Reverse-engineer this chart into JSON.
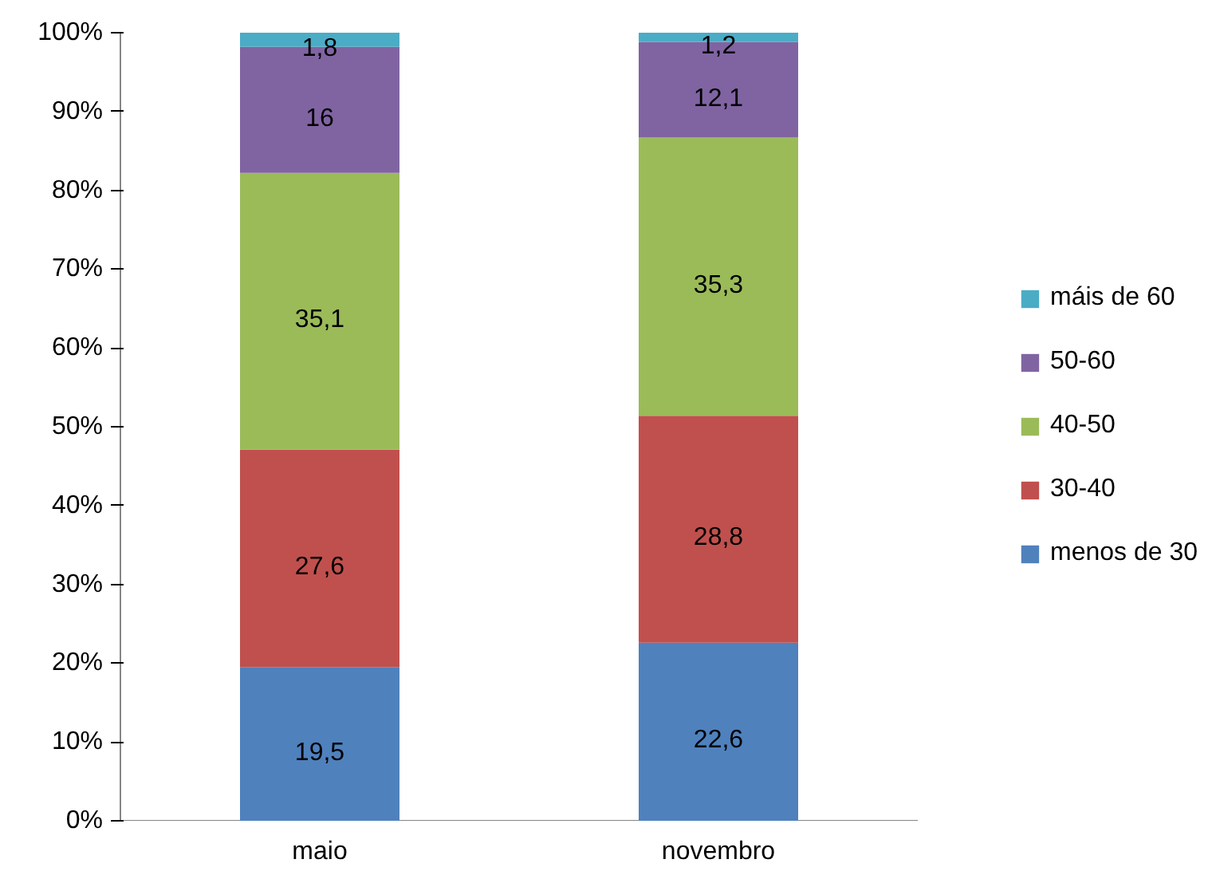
{
  "chart_data": {
    "type": "bar",
    "stacked": true,
    "categories": [
      "maio",
      "novembro"
    ],
    "series": [
      {
        "name": "menos de 30",
        "color": "#4f81bd",
        "values": [
          19.5,
          22.6
        ],
        "value_labels": [
          "19,5",
          "22,6"
        ]
      },
      {
        "name": "30-40",
        "color": "#c0504d",
        "values": [
          27.6,
          28.8
        ],
        "value_labels": [
          "27,6",
          "28,8"
        ]
      },
      {
        "name": "40-50",
        "color": "#9bbb59",
        "values": [
          35.1,
          35.3
        ],
        "value_labels": [
          "35,1",
          "35,3"
        ]
      },
      {
        "name": "50-60",
        "color": "#8064a2",
        "values": [
          16,
          12.1
        ],
        "value_labels": [
          "16",
          "12,1"
        ]
      },
      {
        "name": "máis de 60",
        "color": "#4bacc6",
        "values": [
          1.8,
          1.2
        ],
        "value_labels": [
          "1,8",
          "1,2"
        ]
      }
    ],
    "ylim": [
      0,
      100
    ],
    "yticks": [
      {
        "value": 0,
        "label": "0%"
      },
      {
        "value": 10,
        "label": "10%"
      },
      {
        "value": 20,
        "label": "20%"
      },
      {
        "value": 30,
        "label": "30%"
      },
      {
        "value": 40,
        "label": "40%"
      },
      {
        "value": 50,
        "label": "50%"
      },
      {
        "value": 60,
        "label": "60%"
      },
      {
        "value": 70,
        "label": "70%"
      },
      {
        "value": 80,
        "label": "80%"
      },
      {
        "value": 90,
        "label": "90%"
      },
      {
        "value": 100,
        "label": "100%"
      }
    ],
    "grid": false,
    "legend": "right"
  }
}
